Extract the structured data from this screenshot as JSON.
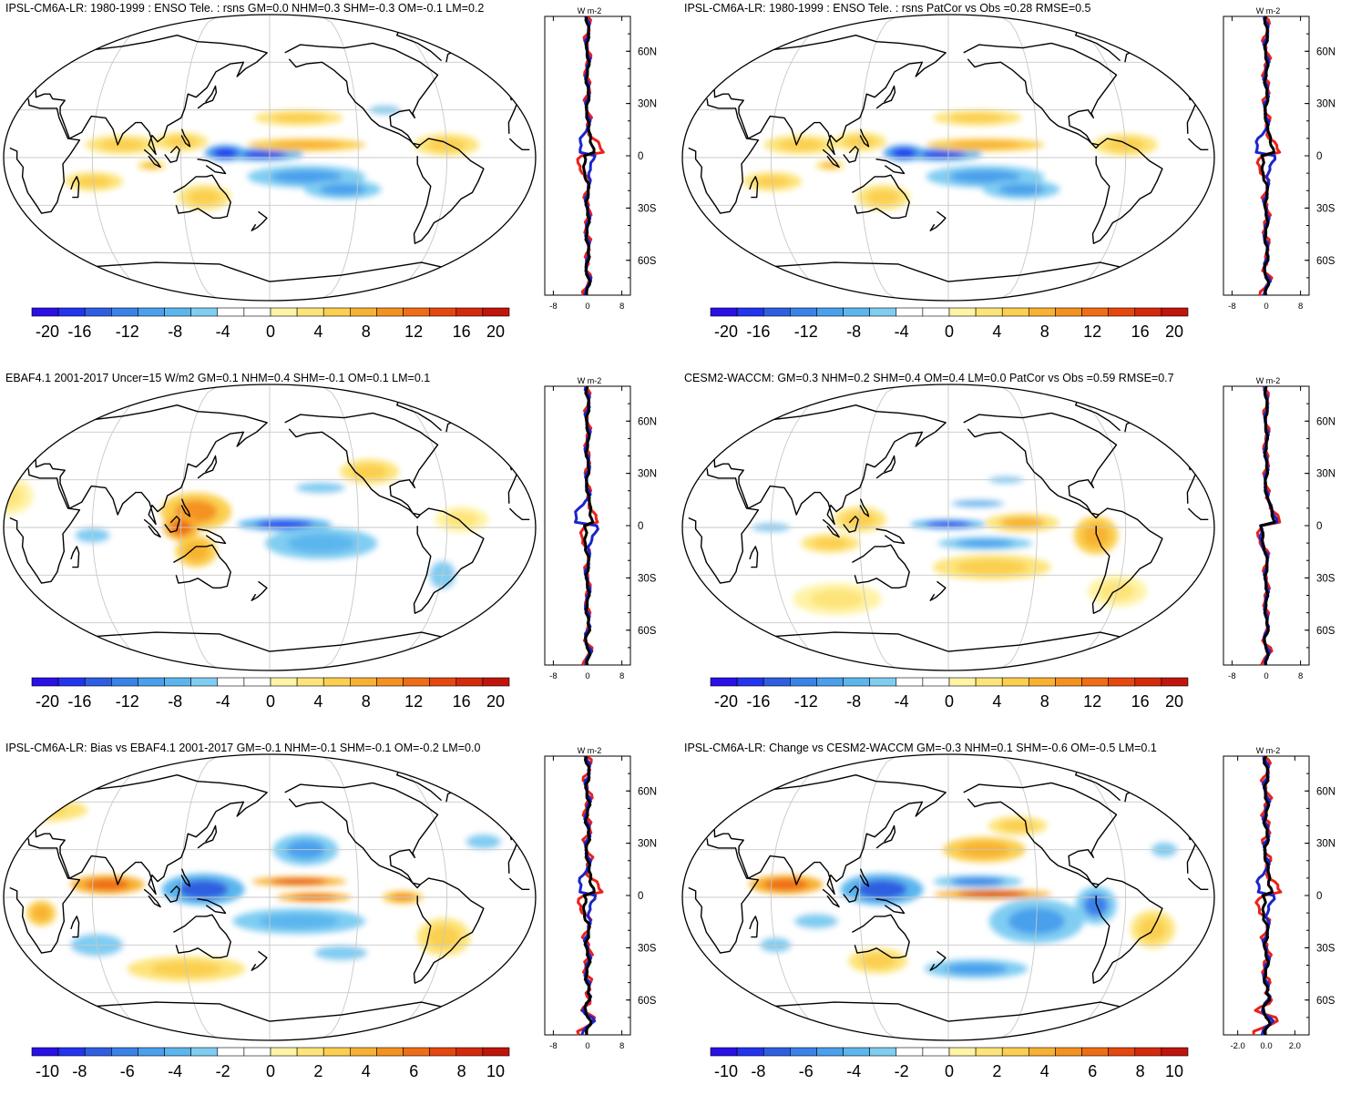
{
  "figure": {
    "panels": [
      {
        "id": "a",
        "title": "IPSL-CM6A-LR: 1980-1999 : ENSO Tele. : rsns GM=0.0 NHM=0.3 SHM=-0.3 OM=-0.1 LM=0.2",
        "colorbar": {
          "labels": [
            "-20",
            "-16",
            "-12",
            "-8",
            "-4",
            "0",
            "4",
            "8",
            "12",
            "16",
            "20"
          ]
        },
        "zonal": {
          "units": "W m-2",
          "xticks": [
            "-8",
            "0",
            "8"
          ],
          "lat_labels": [
            "60N",
            "30N",
            "0",
            "30S",
            "60S"
          ]
        }
      },
      {
        "id": "b",
        "title": "IPSL-CM6A-LR: 1980-1999 : ENSO Tele. : rsns PatCor vs Obs =0.28 RMSE=0.5",
        "colorbar": {
          "labels": [
            "-20",
            "-16",
            "-12",
            "-8",
            "-4",
            "0",
            "4",
            "8",
            "12",
            "16",
            "20"
          ]
        },
        "zonal": {
          "units": "W m-2",
          "xticks": [
            "-8",
            "0",
            "8"
          ],
          "lat_labels": [
            "60N",
            "30N",
            "0",
            "30S",
            "60S"
          ]
        }
      },
      {
        "id": "c",
        "title": "EBAF4.1 2001-2017 Uncer=15 W/m2 GM=0.1 NHM=0.4 SHM=-0.1 OM=0.1 LM=0.1",
        "colorbar": {
          "labels": [
            "-20",
            "-16",
            "-12",
            "-8",
            "-4",
            "0",
            "4",
            "8",
            "12",
            "16",
            "20"
          ]
        },
        "zonal": {
          "units": "W m-2",
          "xticks": [
            "-8",
            "0",
            "8"
          ],
          "lat_labels": [
            "60N",
            "30N",
            "0",
            "30S",
            "60S"
          ]
        }
      },
      {
        "id": "d",
        "title": "CESM2-WACCM: GM=0.3 NHM=0.2 SHM=0.4 OM=0.4 LM=0.0 PatCor vs Obs =0.59 RMSE=0.7",
        "colorbar": {
          "labels": [
            "-20",
            "-16",
            "-12",
            "-8",
            "-4",
            "0",
            "4",
            "8",
            "12",
            "16",
            "20"
          ]
        },
        "zonal": {
          "units": "W m-2",
          "xticks": [
            "-8",
            "0",
            "8"
          ],
          "lat_labels": [
            "60N",
            "30N",
            "0",
            "30S",
            "60S"
          ]
        }
      },
      {
        "id": "e",
        "title": "IPSL-CM6A-LR: Bias vs EBAF4.1 2001-2017 GM=-0.1 NHM=-0.1 SHM=-0.1 OM=-0.2 LM=0.0",
        "colorbar": {
          "labels": [
            "-10",
            "-8",
            "-6",
            "-4",
            "-2",
            "0",
            "2",
            "4",
            "6",
            "8",
            "10"
          ]
        },
        "zonal": {
          "units": "W m-2",
          "xticks": [
            "-8",
            "0",
            "8"
          ],
          "lat_labels": [
            "60N",
            "30N",
            "0",
            "30S",
            "60S"
          ]
        }
      },
      {
        "id": "f",
        "title": "IPSL-CM6A-LR: Change vs CESM2-WACCM GM=-0.3 NHM=0.1 SHM=-0.6 OM=-0.5 LM=0.1",
        "colorbar": {
          "labels": [
            "-10",
            "-8",
            "-6",
            "-4",
            "-2",
            "0",
            "2",
            "4",
            "6",
            "8",
            "10"
          ]
        },
        "zonal": {
          "units": "W m-2",
          "xticks": [
            "-2.0",
            "0.0",
            "2.0"
          ],
          "lat_labels": [
            "60N",
            "30N",
            "0",
            "30S",
            "60S"
          ]
        }
      }
    ],
    "colors": {
      "scale": [
        "#2a10e6",
        "#2234ee",
        "#2f5fe0",
        "#3a82e8",
        "#4aa0ec",
        "#5cb6ee",
        "#80cdf2",
        "#ffffff",
        "#ffffff",
        "#fff3a6",
        "#fde47a",
        "#fbcf50",
        "#f8b233",
        "#f49220",
        "#ef6d16",
        "#e5480f",
        "#d42a0c",
        "#c0150b"
      ],
      "land": "#000000",
      "grid": "#c8c8c8",
      "zonal_model": "#e8231b",
      "zonal_obs": "#1b25c9",
      "zonal_black": "#000000"
    }
  }
}
